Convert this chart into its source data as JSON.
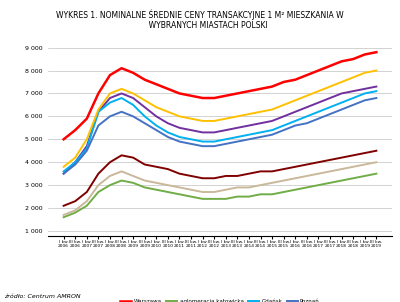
{
  "title": "WYKRES 1. NOMINALNE ŚREDNIE CENY TRANSAKCYJNE 1 M² MIESZKANIA W\n       WYBRANYCH MIASTACH POLSKI",
  "ylabel": "",
  "xlabel": "",
  "source": "źródło: Centrum AMRON",
  "ylim": [
    1000,
    9000
  ],
  "yticks": [
    1000,
    2000,
    3000,
    4000,
    5000,
    6000,
    7000,
    8000,
    9000
  ],
  "years_labels": [
    "2006",
    "",
    "2007",
    "",
    "2008",
    "",
    "2009",
    "",
    "2010",
    "",
    "2011",
    "",
    "2012",
    "",
    "2013",
    "",
    "2014",
    "",
    "2015",
    "",
    "2016",
    "",
    "2017",
    "",
    "2018",
    "",
    "2019",
    ""
  ],
  "series": {
    "Warszawa": {
      "color": "#FF0000",
      "linewidth": 1.8,
      "data": [
        5000,
        5400,
        5900,
        7000,
        7800,
        8100,
        7900,
        7600,
        7400,
        7200,
        7000,
        6900,
        6800,
        6800,
        6900,
        7000,
        7100,
        7200,
        7300,
        7500,
        7600,
        7800,
        8000,
        8200,
        8400,
        8500,
        8700,
        8800
      ]
    },
    "Białystok": {
      "color": "#800000",
      "linewidth": 1.4,
      "data": [
        2100,
        2300,
        2700,
        3500,
        4000,
        4300,
        4200,
        3900,
        3800,
        3700,
        3500,
        3400,
        3300,
        3300,
        3400,
        3400,
        3500,
        3600,
        3600,
        3700,
        3800,
        3900,
        4000,
        4100,
        4200,
        4300,
        4400,
        4500
      ]
    },
    "aglomeracja katowicka": {
      "color": "#70AD47",
      "linewidth": 1.4,
      "data": [
        1600,
        1800,
        2100,
        2700,
        3000,
        3200,
        3100,
        2900,
        2800,
        2700,
        2600,
        2500,
        2400,
        2400,
        2400,
        2500,
        2500,
        2600,
        2600,
        2700,
        2800,
        2900,
        3000,
        3100,
        3200,
        3300,
        3400,
        3500
      ]
    },
    "Wrocław": {
      "color": "#7030A0",
      "linewidth": 1.4,
      "data": [
        3500,
        4000,
        4700,
        6200,
        6800,
        7000,
        6800,
        6400,
        6000,
        5700,
        5500,
        5400,
        5300,
        5300,
        5400,
        5500,
        5600,
        5700,
        5800,
        6000,
        6200,
        6400,
        6600,
        6800,
        7000,
        7100,
        7200,
        7300
      ]
    },
    "Gdańsk": {
      "color": "#00B0F0",
      "linewidth": 1.4,
      "data": [
        3600,
        4000,
        4600,
        6200,
        6600,
        6800,
        6500,
        6000,
        5600,
        5300,
        5100,
        5000,
        4900,
        4900,
        5000,
        5100,
        5200,
        5300,
        5400,
        5600,
        5800,
        6000,
        6200,
        6400,
        6600,
        6800,
        7000,
        7100
      ]
    },
    "Kraków": {
      "color": "#FFC000",
      "linewidth": 1.4,
      "data": [
        3800,
        4200,
        5000,
        6300,
        7000,
        7200,
        7000,
        6700,
        6400,
        6200,
        6000,
        5900,
        5800,
        5800,
        5900,
        6000,
        6100,
        6200,
        6300,
        6500,
        6700,
        6900,
        7100,
        7300,
        7500,
        7700,
        7900,
        8000
      ]
    },
    "Poznań": {
      "color": "#4472C4",
      "linewidth": 1.4,
      "data": [
        3500,
        3900,
        4500,
        5600,
        6000,
        6200,
        6000,
        5700,
        5400,
        5100,
        4900,
        4800,
        4700,
        4700,
        4800,
        4900,
        5000,
        5100,
        5200,
        5400,
        5600,
        5700,
        5900,
        6100,
        6300,
        6500,
        6700,
        6800
      ]
    },
    "Łódź": {
      "color": "#C9B99A",
      "linewidth": 1.4,
      "data": [
        1700,
        1900,
        2300,
        3000,
        3400,
        3600,
        3400,
        3200,
        3100,
        3000,
        2900,
        2800,
        2700,
        2700,
        2800,
        2900,
        2900,
        3000,
        3100,
        3200,
        3300,
        3400,
        3500,
        3600,
        3700,
        3800,
        3900,
        4000
      ]
    }
  },
  "background_color": "#FFFFFF",
  "grid_color": "#C0C0C0",
  "n_points": 28
}
